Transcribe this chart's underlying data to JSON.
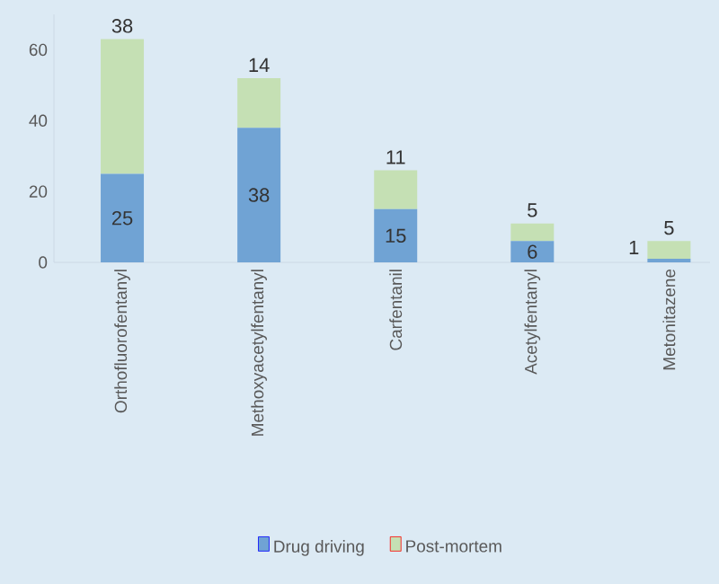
{
  "chart_data": {
    "type": "bar",
    "stacked": true,
    "categories": [
      "Orthofluorofentanyl",
      "Methoxyacetylfentanyl",
      "Carfentanil",
      "Acetylfentanyl",
      "Metonitazene"
    ],
    "series": [
      {
        "name": "Drug driving",
        "color": "#70a3d4",
        "values": [
          25,
          38,
          15,
          6,
          1
        ]
      },
      {
        "name": "Post-mortem",
        "color": "#c5e0b4",
        "values": [
          38,
          14,
          11,
          5,
          5
        ]
      }
    ],
    "ylim": [
      0,
      70
    ],
    "yticks": [
      0,
      20,
      40,
      60
    ],
    "data_labels": true,
    "legend": "bottom",
    "grid": false
  }
}
